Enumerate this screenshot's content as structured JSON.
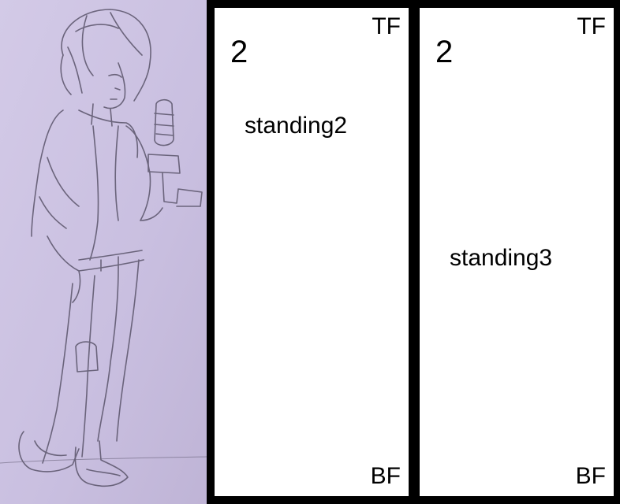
{
  "sketch": {
    "paper_color": "#cdc3e3",
    "line_color": "#5a546a"
  },
  "panels": [
    {
      "number": "2",
      "top_corner": "TF",
      "bottom_corner": "BF",
      "note": "standing2"
    },
    {
      "number": "2",
      "top_corner": "TF",
      "bottom_corner": "BF",
      "note": "standing3"
    }
  ]
}
